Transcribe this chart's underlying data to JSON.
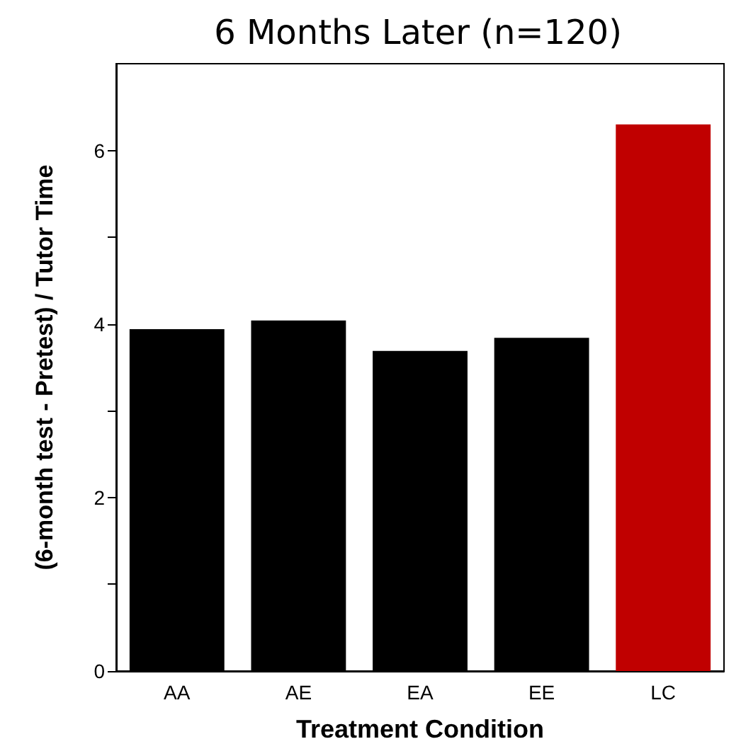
{
  "chart_data": {
    "type": "bar",
    "title": "6 Months Later (n=120)",
    "xlabel": "Treatment Condition",
    "ylabel": "(6-month test - Pretest) / Tutor Time",
    "categories": [
      "AA",
      "AE",
      "EA",
      "EE",
      "LC"
    ],
    "values": [
      3.94,
      4.04,
      3.69,
      3.84,
      6.3
    ],
    "colors": [
      "#000000",
      "#000000",
      "#000000",
      "#000000",
      "#c00000"
    ],
    "ylim": [
      0,
      7
    ],
    "yticks": [
      0,
      {
        "value": 1,
        "label": null
      },
      2,
      {
        "value": 3,
        "label": null
      },
      4,
      {
        "value": 5,
        "label": null
      },
      6
    ],
    "grid": false
  }
}
